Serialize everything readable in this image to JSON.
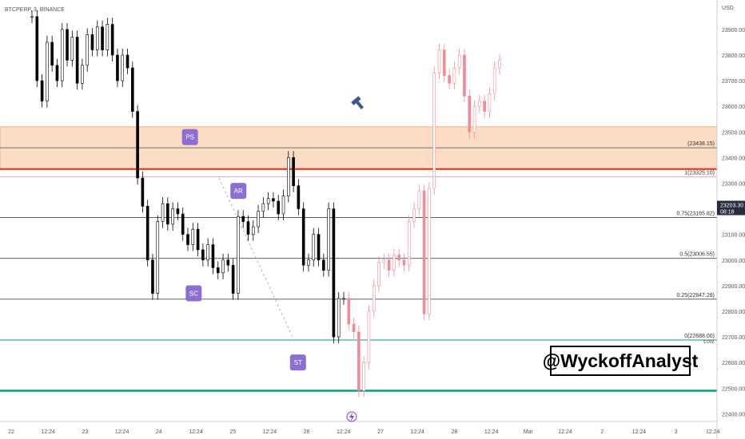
{
  "symbol_header": "BTCPERP, 3, BINANCE",
  "axis_unit": "USD",
  "watermark": "@WyckoffAnalyst",
  "colors": {
    "zone_fill": "#fbdcc4",
    "zone_border": "#f0a060",
    "resistance": "#e8391f",
    "support": "#0e9b80",
    "price_label": "#262b3e",
    "candle_old": "#000000",
    "candle_new": "#f28a94",
    "annotation": "#8c6fd0",
    "level": "#4a4a4a"
  },
  "chart_data": {
    "type": "line",
    "title": "",
    "xlabel": "",
    "ylabel": "USD",
    "ylim": [
      22370,
      23990
    ],
    "y_ticks": [
      22400,
      22500,
      22600,
      22700,
      22800,
      22900,
      23000,
      23100,
      23200,
      23300,
      23400,
      23500,
      23600,
      23700,
      23800,
      23900
    ],
    "y_tick_labels": [
      "22400.00",
      "22500.00",
      "22600.00",
      "22700.00",
      "22800.00",
      "22900.00",
      "23000.00",
      "23100.00",
      "23200.00",
      "23300.00",
      "23400.00",
      "23500.00",
      "23600.00",
      "23700.00",
      "23800.00",
      "23900.00"
    ],
    "x_tick_labels": [
      "22",
      "12:24",
      "23",
      "12:24",
      "24",
      "12:24",
      "25",
      "12:24",
      "26",
      "12:24",
      "27",
      "12:24",
      "28",
      "12:24",
      "Mar",
      "12:24",
      "2",
      "12:24",
      "3",
      "12:24"
    ],
    "current_price": {
      "value": 23203.3,
      "label": "23203.30",
      "countdown": "08:18"
    },
    "zone": {
      "low": 23355,
      "high": 23520
    },
    "resistance_line": 23355,
    "support_line": 22490,
    "low_line": {
      "value": 22688,
      "label": "22688.00",
      "tag": "Low"
    },
    "levels": [
      {
        "value": 23438.15,
        "label": "(23438.15)"
      },
      {
        "value": 23325.1,
        "label": "1(23325.10)"
      },
      {
        "value": 23165.82,
        "label": "0.75(23165.82)"
      },
      {
        "value": 23006.55,
        "label": "0.5(23006.55)"
      },
      {
        "value": 22847.28,
        "label": "0.25(22847.28)"
      },
      {
        "value": 22688.0,
        "label": "0(22688.00)"
      }
    ],
    "annotations": [
      {
        "label": "PS",
        "x": 0.255,
        "y": 23480
      },
      {
        "label": "AR",
        "x": 0.32,
        "y": 23270
      },
      {
        "label": "SC",
        "x": 0.26,
        "y": 22870
      },
      {
        "label": "ST",
        "x": 0.4,
        "y": 22600
      }
    ],
    "series": [
      {
        "values": [
          23950,
          23700,
          23620,
          23850,
          23760,
          23700,
          23900,
          23780,
          23870,
          23690,
          23760,
          23880,
          23820,
          23910,
          23820,
          23920,
          23800,
          23700,
          23800,
          23750,
          23580,
          23320,
          23210,
          23000,
          22870,
          23150,
          23220,
          23140,
          23200,
          23180,
          23100,
          23060,
          23120,
          23040,
          23000,
          23060,
          22970,
          22950,
          23000,
          22980,
          22870,
          23170,
          23150,
          23100,
          23130,
          23190,
          23220,
          23240,
          23230,
          23180,
          23250,
          23400,
          23290,
          23200,
          22980,
          23000,
          23100,
          23000,
          22960,
          23200,
          22700,
          22850,
          22850,
          22750,
          22720,
          22490,
          22600,
          22800,
          22900,
          22990,
          23000,
          22960,
          23020,
          23000,
          22980,
          23150,
          23200,
          23270,
          22790,
          23280,
          23730,
          23820,
          23720,
          23690,
          23750,
          23800,
          23640,
          23500,
          23600,
          23620,
          23580,
          23650,
          23750,
          23780
        ]
      }
    ]
  }
}
